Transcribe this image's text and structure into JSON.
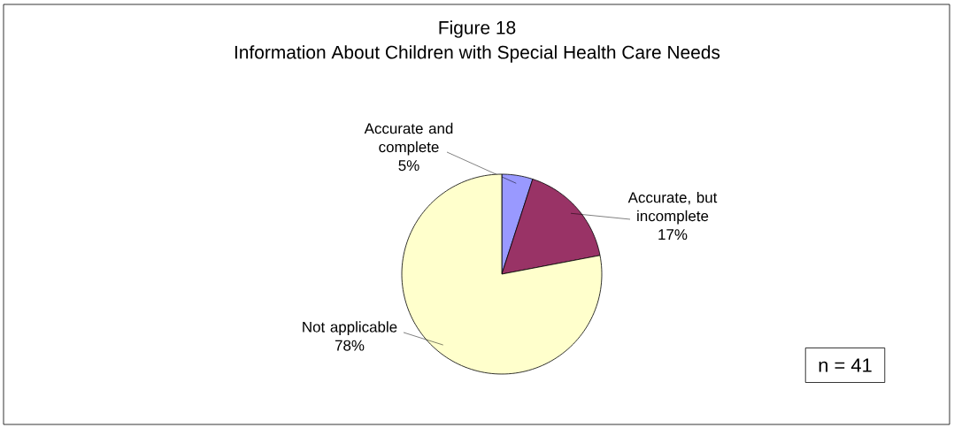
{
  "chart_data": {
    "type": "pie",
    "title": "Figure 18",
    "subtitle": "Information About Children with Special Health Care Needs",
    "categories": [
      "Accurate and complete",
      "Accurate, but incomplete",
      "Not applicable"
    ],
    "values": [
      5,
      17,
      78
    ],
    "value_labels": [
      "5%",
      "17%",
      "78%"
    ],
    "colors": [
      "#9999ff",
      "#993366",
      "#ffffcc"
    ],
    "annotations": [
      "n = 41"
    ]
  }
}
